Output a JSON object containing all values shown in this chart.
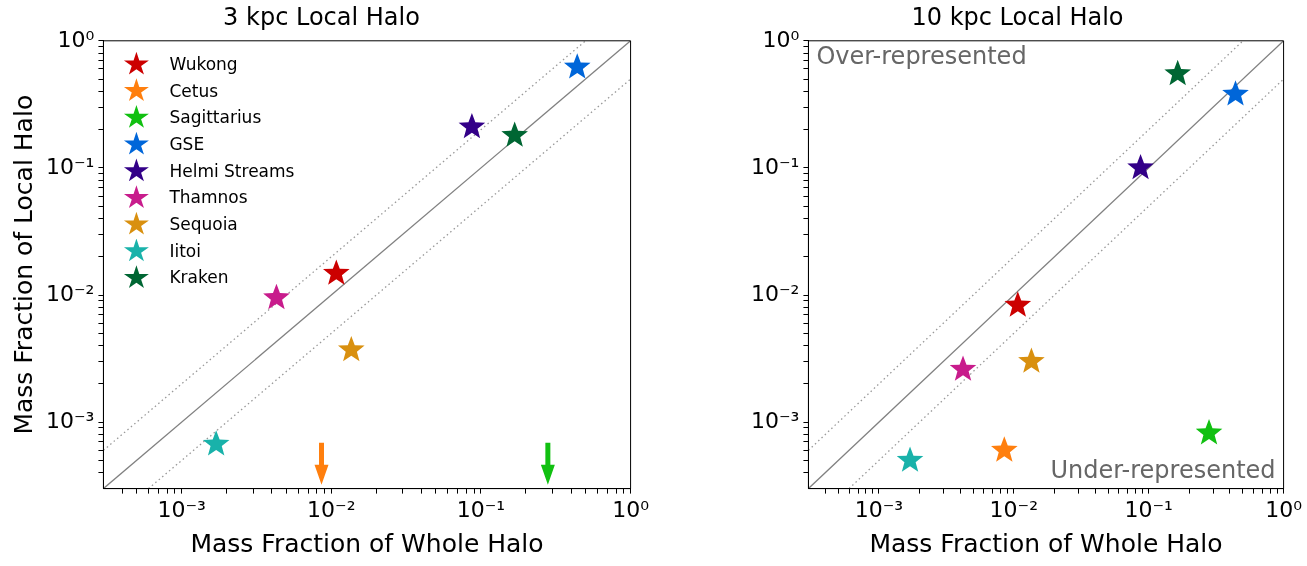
{
  "chart_data": [
    {
      "type": "scatter",
      "title": "3 kpc Local Halo",
      "xlabel": "Mass Fraction of Whole Halo",
      "ylabel": "Mass Fraction of Local Halo",
      "log": "xy",
      "grid": false,
      "legend": "top left",
      "marker": "star",
      "xlim": [
        0.0003,
        1
      ],
      "ylim": [
        0.0003,
        1
      ],
      "xticks": [
        {
          "value": 0.0004,
          "label": null
        },
        {
          "value": 0.0005,
          "label": null
        },
        {
          "value": 0.0006,
          "label": null
        },
        {
          "value": 0.0007,
          "label": null
        },
        {
          "value": 0.0008,
          "label": null
        },
        {
          "value": 0.0009,
          "label": null
        },
        {
          "value": 0.001,
          "label": "10⁻³"
        },
        {
          "value": 0.002,
          "label": null
        },
        {
          "value": 0.003,
          "label": null
        },
        {
          "value": 0.004,
          "label": null
        },
        {
          "value": 0.005,
          "label": null
        },
        {
          "value": 0.006,
          "label": null
        },
        {
          "value": 0.007,
          "label": null
        },
        {
          "value": 0.008,
          "label": null
        },
        {
          "value": 0.009,
          "label": null
        },
        {
          "value": 0.01,
          "label": "10⁻²"
        },
        {
          "value": 0.02,
          "label": null
        },
        {
          "value": 0.03,
          "label": null
        },
        {
          "value": 0.04,
          "label": null
        },
        {
          "value": 0.05,
          "label": null
        },
        {
          "value": 0.06,
          "label": null
        },
        {
          "value": 0.07,
          "label": null
        },
        {
          "value": 0.08,
          "label": null
        },
        {
          "value": 0.09,
          "label": null
        },
        {
          "value": 0.1,
          "label": "10⁻¹"
        },
        {
          "value": 0.2,
          "label": null
        },
        {
          "value": 0.3,
          "label": null
        },
        {
          "value": 0.4,
          "label": null
        },
        {
          "value": 0.5,
          "label": null
        },
        {
          "value": 0.6,
          "label": null
        },
        {
          "value": 0.7,
          "label": null
        },
        {
          "value": 0.8,
          "label": null
        },
        {
          "value": 0.9,
          "label": null
        },
        {
          "value": 1,
          "label": "10⁰"
        }
      ],
      "yticks": [
        {
          "value": 0.0004,
          "label": null
        },
        {
          "value": 0.0005,
          "label": null
        },
        {
          "value": 0.0006,
          "label": null
        },
        {
          "value": 0.0007,
          "label": null
        },
        {
          "value": 0.0008,
          "label": null
        },
        {
          "value": 0.0009,
          "label": null
        },
        {
          "value": 0.001,
          "label": "10⁻³"
        },
        {
          "value": 0.002,
          "label": null
        },
        {
          "value": 0.003,
          "label": null
        },
        {
          "value": 0.004,
          "label": null
        },
        {
          "value": 0.005,
          "label": null
        },
        {
          "value": 0.006,
          "label": null
        },
        {
          "value": 0.007,
          "label": null
        },
        {
          "value": 0.008,
          "label": null
        },
        {
          "value": 0.009,
          "label": null
        },
        {
          "value": 0.01,
          "label": "10⁻²"
        },
        {
          "value": 0.02,
          "label": null
        },
        {
          "value": 0.03,
          "label": null
        },
        {
          "value": 0.04,
          "label": null
        },
        {
          "value": 0.05,
          "label": null
        },
        {
          "value": 0.06,
          "label": null
        },
        {
          "value": 0.07,
          "label": null
        },
        {
          "value": 0.08,
          "label": null
        },
        {
          "value": 0.09,
          "label": null
        },
        {
          "value": 0.1,
          "label": "10⁻¹"
        },
        {
          "value": 0.2,
          "label": null
        },
        {
          "value": 0.3,
          "label": null
        },
        {
          "value": 0.4,
          "label": null
        },
        {
          "value": 0.5,
          "label": null
        },
        {
          "value": 0.6,
          "label": null
        },
        {
          "value": 0.7,
          "label": null
        },
        {
          "value": 0.8,
          "label": null
        },
        {
          "value": 0.9,
          "label": null
        },
        {
          "value": 1,
          "label": "10⁰"
        }
      ],
      "series": [
        {
          "type": "line",
          "color": "#808080",
          "line_style": "solid",
          "marker": "none",
          "x": [
            0.0003,
            1
          ],
          "values": [
            0.0003,
            1
          ]
        },
        {
          "type": "line",
          "color": "#999999",
          "line_style": "dotted",
          "marker": "none",
          "x": [
            0.0003,
            0.5
          ],
          "values": [
            0.0006,
            1
          ]
        },
        {
          "type": "line",
          "color": "#999999",
          "line_style": "dotted",
          "marker": "none",
          "x": [
            0.0006,
            1
          ],
          "values": [
            0.0003,
            0.5
          ]
        },
        {
          "name": "Wukong",
          "color": "#cc0000",
          "x": [
            0.0108
          ],
          "values": [
            0.0148
          ]
        },
        {
          "name": "Cetus",
          "color": "#ff7f0e",
          "marker": "triangle",
          "x": [
            0.0086
          ],
          "values": [
            0.00048
          ]
        },
        {
          "name": "Sagittarius",
          "color": "#11c011",
          "marker": "triangle",
          "x": [
            0.28
          ],
          "values": [
            0.00048
          ]
        },
        {
          "name": "GSE",
          "color": "#0066d9",
          "x": [
            0.44
          ],
          "values": [
            0.62
          ]
        },
        {
          "name": "Helmi Streams",
          "color": "#330088",
          "x": [
            0.087
          ],
          "values": [
            0.21
          ]
        },
        {
          "name": "Thamnos",
          "color": "#c81c8c",
          "x": [
            0.0043
          ],
          "values": [
            0.0095
          ]
        },
        {
          "name": "Sequoia",
          "color": "#d9900f",
          "x": [
            0.0136
          ],
          "values": [
            0.0037
          ]
        },
        {
          "name": "Iitoi",
          "color": "#19b2aa",
          "x": [
            0.0017
          ],
          "values": [
            0.00067
          ]
        },
        {
          "name": "Kraken",
          "color": "#006633",
          "x": [
            0.168
          ],
          "values": [
            0.18
          ]
        }
      ]
    },
    {
      "type": "scatter",
      "title": "10 kpc Local Halo",
      "xlabel": "Mass Fraction of Whole Halo",
      "log": "xy",
      "grid": false,
      "marker": "star",
      "annotations": [
        "Over-represented",
        "Under-represented"
      ],
      "xlim": [
        0.0003,
        1
      ],
      "ylim": [
        0.0003,
        1
      ],
      "xticks": [
        {
          "value": 0.0004,
          "label": null
        },
        {
          "value": 0.0005,
          "label": null
        },
        {
          "value": 0.0006,
          "label": null
        },
        {
          "value": 0.0007,
          "label": null
        },
        {
          "value": 0.0008,
          "label": null
        },
        {
          "value": 0.0009,
          "label": null
        },
        {
          "value": 0.001,
          "label": "10⁻³"
        },
        {
          "value": 0.002,
          "label": null
        },
        {
          "value": 0.003,
          "label": null
        },
        {
          "value": 0.004,
          "label": null
        },
        {
          "value": 0.005,
          "label": null
        },
        {
          "value": 0.006,
          "label": null
        },
        {
          "value": 0.007,
          "label": null
        },
        {
          "value": 0.008,
          "label": null
        },
        {
          "value": 0.009,
          "label": null
        },
        {
          "value": 0.01,
          "label": "10⁻²"
        },
        {
          "value": 0.02,
          "label": null
        },
        {
          "value": 0.03,
          "label": null
        },
        {
          "value": 0.04,
          "label": null
        },
        {
          "value": 0.05,
          "label": null
        },
        {
          "value": 0.06,
          "label": null
        },
        {
          "value": 0.07,
          "label": null
        },
        {
          "value": 0.08,
          "label": null
        },
        {
          "value": 0.09,
          "label": null
        },
        {
          "value": 0.1,
          "label": "10⁻¹"
        },
        {
          "value": 0.2,
          "label": null
        },
        {
          "value": 0.3,
          "label": null
        },
        {
          "value": 0.4,
          "label": null
        },
        {
          "value": 0.5,
          "label": null
        },
        {
          "value": 0.6,
          "label": null
        },
        {
          "value": 0.7,
          "label": null
        },
        {
          "value": 0.8,
          "label": null
        },
        {
          "value": 0.9,
          "label": null
        },
        {
          "value": 1,
          "label": "10⁰"
        }
      ],
      "yticks": [
        {
          "value": 0.0004,
          "label": null
        },
        {
          "value": 0.0005,
          "label": null
        },
        {
          "value": 0.0006,
          "label": null
        },
        {
          "value": 0.0007,
          "label": null
        },
        {
          "value": 0.0008,
          "label": null
        },
        {
          "value": 0.0009,
          "label": null
        },
        {
          "value": 0.001,
          "label": "10⁻³"
        },
        {
          "value": 0.002,
          "label": null
        },
        {
          "value": 0.003,
          "label": null
        },
        {
          "value": 0.004,
          "label": null
        },
        {
          "value": 0.005,
          "label": null
        },
        {
          "value": 0.006,
          "label": null
        },
        {
          "value": 0.007,
          "label": null
        },
        {
          "value": 0.008,
          "label": null
        },
        {
          "value": 0.009,
          "label": null
        },
        {
          "value": 0.01,
          "label": "10⁻²"
        },
        {
          "value": 0.02,
          "label": null
        },
        {
          "value": 0.03,
          "label": null
        },
        {
          "value": 0.04,
          "label": null
        },
        {
          "value": 0.05,
          "label": null
        },
        {
          "value": 0.06,
          "label": null
        },
        {
          "value": 0.07,
          "label": null
        },
        {
          "value": 0.08,
          "label": null
        },
        {
          "value": 0.09,
          "label": null
        },
        {
          "value": 0.1,
          "label": "10⁻¹"
        },
        {
          "value": 0.2,
          "label": null
        },
        {
          "value": 0.3,
          "label": null
        },
        {
          "value": 0.4,
          "label": null
        },
        {
          "value": 0.5,
          "label": null
        },
        {
          "value": 0.6,
          "label": null
        },
        {
          "value": 0.7,
          "label": null
        },
        {
          "value": 0.8,
          "label": null
        },
        {
          "value": 0.9,
          "label": null
        },
        {
          "value": 1,
          "label": "10⁰"
        }
      ],
      "series": [
        {
          "type": "line",
          "color": "#808080",
          "line_style": "solid",
          "marker": "none",
          "x": [
            0.0003,
            1
          ],
          "values": [
            0.0003,
            1
          ]
        },
        {
          "type": "line",
          "color": "#999999",
          "line_style": "dotted",
          "marker": "none",
          "x": [
            0.0003,
            0.5
          ],
          "values": [
            0.0006,
            1
          ]
        },
        {
          "type": "line",
          "color": "#999999",
          "line_style": "dotted",
          "marker": "none",
          "x": [
            0.0006,
            1
          ],
          "values": [
            0.0003,
            0.5
          ]
        },
        {
          "color": "#cc0000",
          "x": [
            0.0107
          ],
          "values": [
            0.0083
          ]
        },
        {
          "color": "#ff7f0e",
          "x": [
            0.0085
          ],
          "values": [
            0.0006
          ]
        },
        {
          "color": "#11c011",
          "x": [
            0.28
          ],
          "values": [
            0.00082
          ]
        },
        {
          "color": "#0066d9",
          "x": [
            0.44
          ],
          "values": [
            0.38
          ]
        },
        {
          "color": "#330088",
          "x": [
            0.087
          ],
          "values": [
            0.1
          ]
        },
        {
          "color": "#c81c8c",
          "x": [
            0.0042
          ],
          "values": [
            0.0026
          ]
        },
        {
          "color": "#d9900f",
          "x": [
            0.0135
          ],
          "values": [
            0.003
          ]
        },
        {
          "color": "#19b2aa",
          "x": [
            0.0017
          ],
          "values": [
            0.0005
          ]
        },
        {
          "color": "#006633",
          "x": [
            0.164
          ],
          "values": [
            0.55
          ]
        }
      ]
    }
  ]
}
